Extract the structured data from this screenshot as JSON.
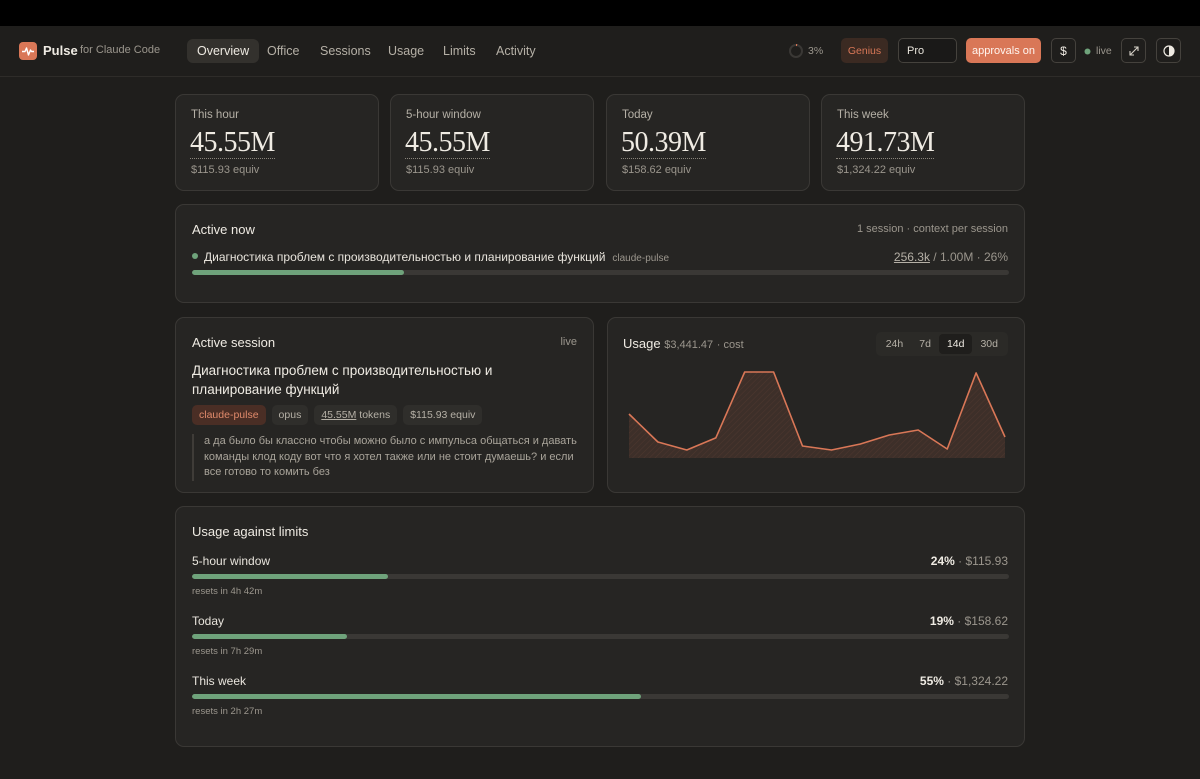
{
  "header": {
    "brand": "Pulse",
    "brand_sub": "for Claude Code",
    "nav": [
      "Overview",
      "Office",
      "Sessions",
      "Usage",
      "Limits",
      "Activity"
    ],
    "active_nav": 0,
    "load": {
      "percent": 3,
      "label": "3%"
    },
    "plan_badge": "Genius",
    "plan": "Pro",
    "approvals": "approvals on",
    "currency": "$",
    "live": "live"
  },
  "stats": [
    {
      "label": "This hour",
      "value": "45.55M",
      "sub": "$115.93 equiv"
    },
    {
      "label": "5-hour window",
      "value": "45.55M",
      "sub": "$115.93 equiv"
    },
    {
      "label": "Today",
      "value": "50.39M",
      "sub": "$158.62 equiv"
    },
    {
      "label": "This week",
      "value": "491.73M",
      "sub": "$1,324.22 equiv"
    }
  ],
  "active_now": {
    "title": "Active now",
    "meta": "1 session · context per session",
    "sessions": [
      {
        "name": "Диагностика проблем с производительностью и планирование функций",
        "project": "claude-pulse",
        "used": "256.3k",
        "context": "/ 1.00M · 26%",
        "percent": 26
      }
    ]
  },
  "active_session": {
    "title": "Active session",
    "status": "live",
    "name": "Диагностика проблем с производительностью и планирование функций",
    "project": "claude-pulse",
    "model": "opus",
    "tokens": "45.55M",
    "tokens_unit": "tokens",
    "cost": "$115.93 equiv",
    "message": "а да было бы классно чтобы можно было с импульса общаться и давать команды клод коду вот что я хотел также или не стоит думаешь? и если все готово то комить без"
  },
  "usage": {
    "title": "Usage",
    "total": "$3,441.47",
    "total_sub": "· cost",
    "ranges": [
      "24h",
      "7d",
      "14d",
      "30d"
    ],
    "active_range": 2,
    "values": [
      329,
      120,
      60,
      150,
      643,
      643,
      90,
      60,
      105,
      172,
      209,
      67,
      636,
      157
    ]
  },
  "limits": {
    "title": "Usage against limits",
    "rows": [
      {
        "label": "5-hour window",
        "percent": 24,
        "percent_label": "24%",
        "detail": "· $115.93",
        "resets": "resets in 4h 42m"
      },
      {
        "label": "Today",
        "percent": 19,
        "percent_label": "19%",
        "detail": "· $158.62",
        "resets": "resets in 7h 29m"
      },
      {
        "label": "This week",
        "percent": 55,
        "percent_label": "55%",
        "detail": "· $1,324.22",
        "resets": "resets in 2h 27m"
      }
    ]
  }
}
